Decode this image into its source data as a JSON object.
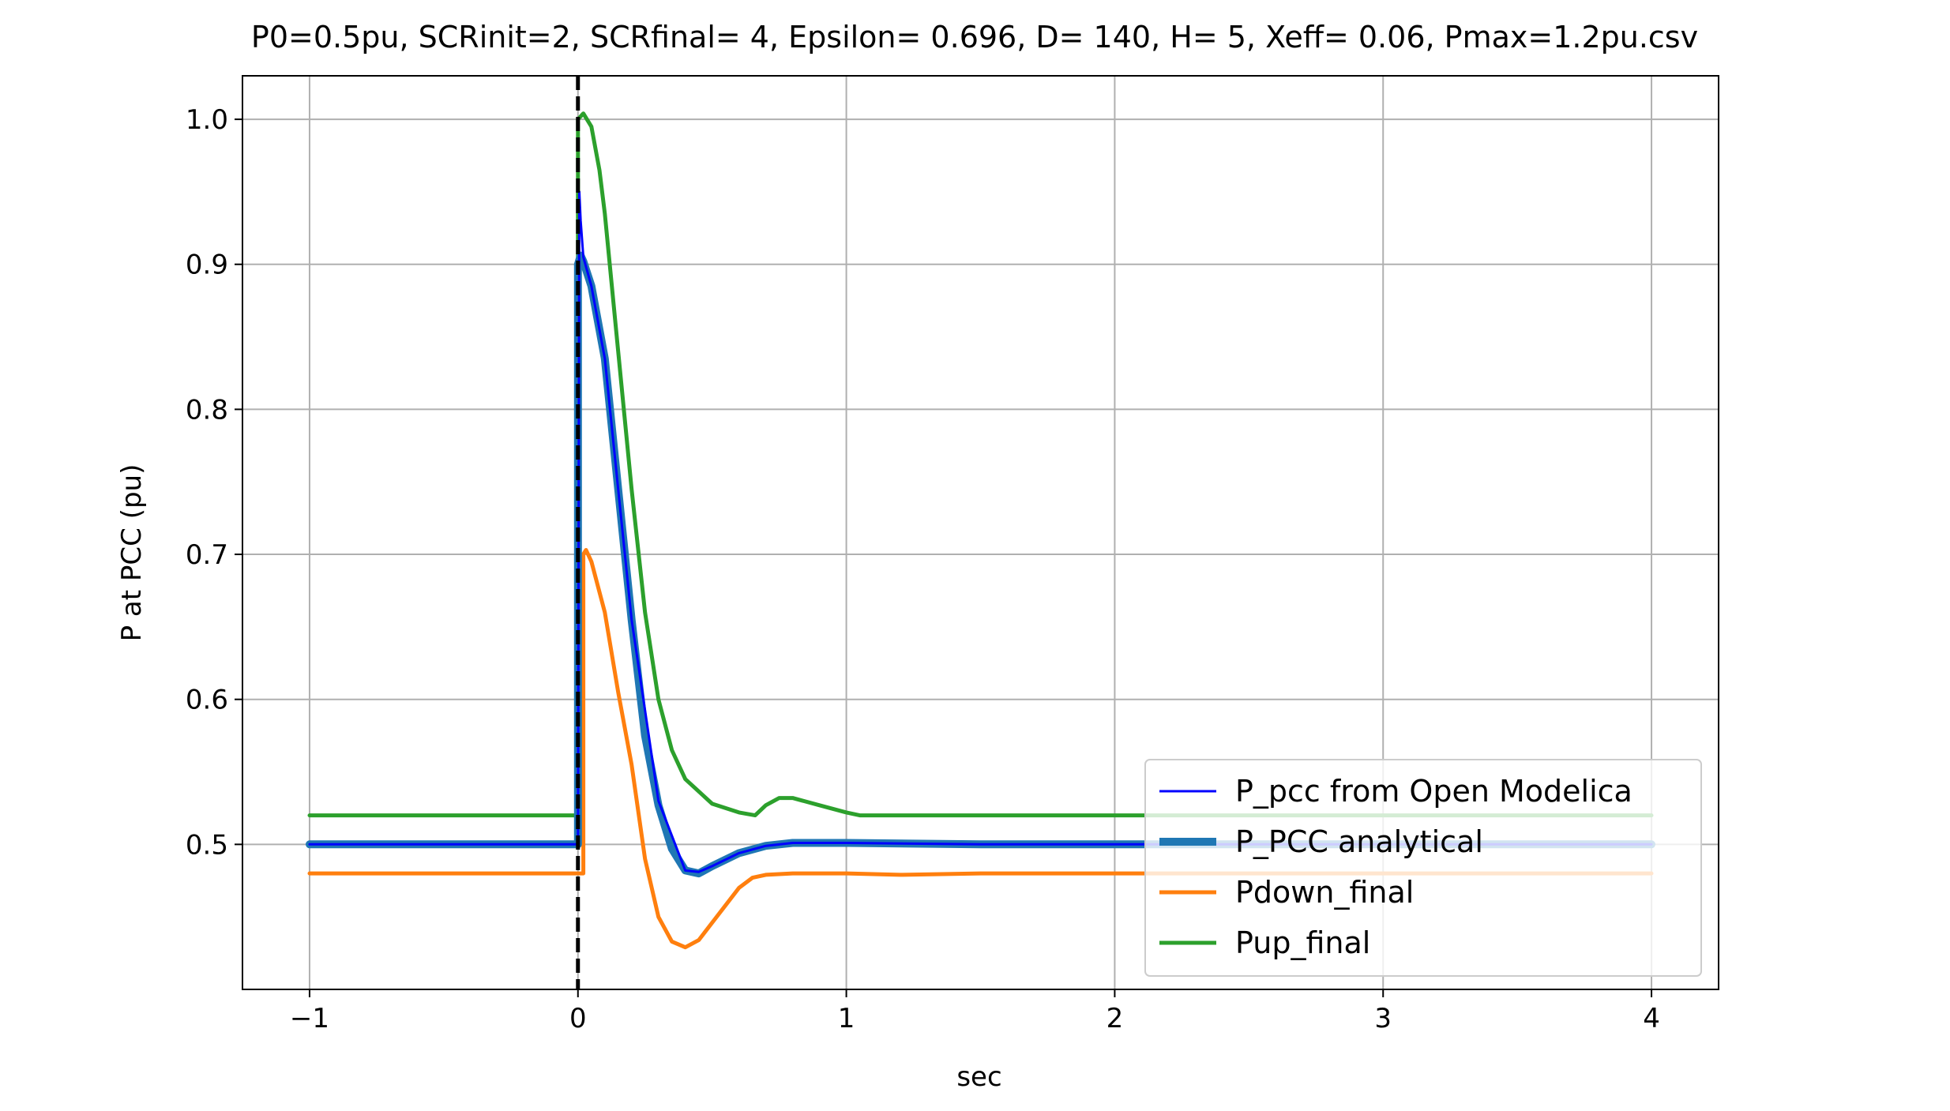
{
  "chart_data": {
    "type": "line",
    "title": "P0=0.5pu, SCRinit=2, SCRfinal= 4, Epsilon= 0.696, D= 140, H= 5, Xeff= 0.06, Pmax=1.2pu.csv",
    "xlabel": "sec",
    "ylabel": "P at PCC (pu)",
    "xlim": [
      -1.25,
      4.25
    ],
    "ylim": [
      0.4,
      1.03
    ],
    "xticks": [
      -1,
      0,
      1,
      2,
      3,
      4
    ],
    "xtick_labels": [
      "−1",
      "0",
      "1",
      "2",
      "3",
      "4"
    ],
    "yticks": [
      0.5,
      0.6,
      0.7,
      0.8,
      0.9,
      1.0
    ],
    "ytick_labels": [
      "0.5",
      "0.6",
      "0.7",
      "0.8",
      "0.9",
      "1.0"
    ],
    "grid": true,
    "legend_position": "lower-right",
    "vline": {
      "x": 0,
      "style": "dashed",
      "color": "#000000"
    },
    "series": [
      {
        "name": "P_pcc from Open Modelica",
        "color": "#0000ff",
        "style": "thin",
        "x": [
          -1.0,
          -0.01,
          0.0,
          0.005,
          0.01,
          0.02,
          0.05,
          0.1,
          0.15,
          0.2,
          0.3,
          0.4,
          0.45,
          0.5,
          0.6,
          0.7,
          0.8,
          1.0,
          1.5,
          2.0,
          3.0,
          4.0
        ],
        "y": [
          0.5,
          0.5,
          0.5,
          0.95,
          0.93,
          0.905,
          0.885,
          0.835,
          0.745,
          0.655,
          0.53,
          0.482,
          0.481,
          0.485,
          0.494,
          0.499,
          0.501,
          0.501,
          0.5,
          0.5,
          0.5,
          0.5
        ]
      },
      {
        "name": "P_PCC analytical",
        "color": "#1f77b4",
        "style": "thick",
        "x": [
          -1.0,
          0.0,
          0.0,
          0.01,
          0.02,
          0.05,
          0.1,
          0.15,
          0.2,
          0.25,
          0.3,
          0.35,
          0.4,
          0.45,
          0.5,
          0.6,
          0.7,
          0.8,
          0.9,
          1.0,
          1.5,
          2.0,
          3.0,
          4.0
        ],
        "y": [
          0.5,
          0.5,
          0.9,
          0.906,
          0.902,
          0.885,
          0.835,
          0.745,
          0.655,
          0.575,
          0.527,
          0.497,
          0.482,
          0.48,
          0.485,
          0.494,
          0.499,
          0.501,
          0.501,
          0.501,
          0.5,
          0.5,
          0.5,
          0.5
        ]
      },
      {
        "name": "Pdown_final",
        "color": "#ff7f0e",
        "style": "medium",
        "x": [
          -1.0,
          0.0,
          0.02,
          0.02,
          0.03,
          0.05,
          0.1,
          0.15,
          0.2,
          0.25,
          0.3,
          0.35,
          0.4,
          0.45,
          0.5,
          0.6,
          0.65,
          0.7,
          0.8,
          1.0,
          1.2,
          1.5,
          2.0,
          3.0,
          4.0
        ],
        "y": [
          0.48,
          0.48,
          0.48,
          0.7,
          0.703,
          0.695,
          0.66,
          0.605,
          0.555,
          0.49,
          0.45,
          0.433,
          0.429,
          0.434,
          0.446,
          0.47,
          0.477,
          0.479,
          0.48,
          0.48,
          0.479,
          0.48,
          0.48,
          0.48,
          0.48
        ]
      },
      {
        "name": "Pup_final",
        "color": "#2ca02c",
        "style": "medium",
        "x": [
          -1.0,
          0.0,
          0.0,
          0.02,
          0.05,
          0.08,
          0.1,
          0.15,
          0.2,
          0.25,
          0.3,
          0.35,
          0.4,
          0.5,
          0.6,
          0.66,
          0.7,
          0.75,
          0.8,
          0.9,
          1.0,
          1.05,
          1.5,
          2.0,
          3.0,
          4.0
        ],
        "y": [
          0.52,
          0.52,
          1.0,
          1.004,
          0.995,
          0.965,
          0.935,
          0.84,
          0.745,
          0.66,
          0.6,
          0.565,
          0.545,
          0.528,
          0.522,
          0.52,
          0.527,
          0.532,
          0.532,
          0.527,
          0.522,
          0.52,
          0.52,
          0.52,
          0.52,
          0.52
        ]
      }
    ]
  }
}
